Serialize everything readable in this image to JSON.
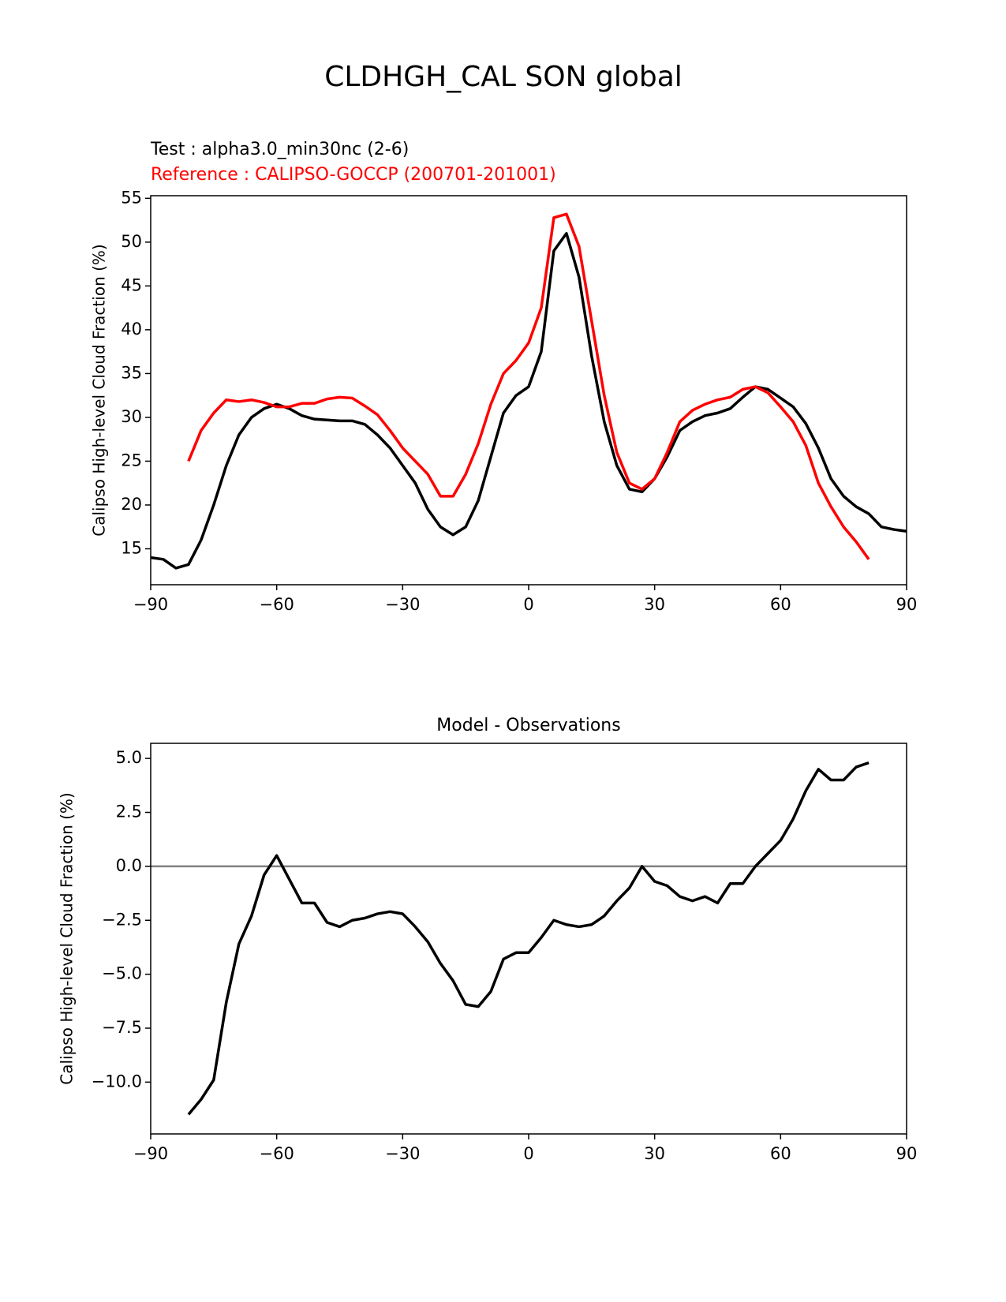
{
  "title": "CLDHGH_CAL SON global",
  "chart_data": [
    {
      "type": "line",
      "subtitles": [
        {
          "text": "Test : alpha3.0_min30nc (2-6)",
          "color": "#000000"
        },
        {
          "text": "Reference : CALIPSO-GOCCP (200701-201001)",
          "color": "#ff0000"
        }
      ],
      "ylabel": "Calipso High-level Cloud Fraction (%)",
      "xlim": [
        -90,
        90
      ],
      "xticks": [
        {
          "value": -90,
          "label": "−90"
        },
        {
          "value": -60,
          "label": "−60"
        },
        {
          "value": -30,
          "label": "−30"
        },
        0,
        30,
        60,
        90
      ],
      "ylim": [
        10.9,
        55.3
      ],
      "yticks": [
        15,
        20,
        25,
        30,
        35,
        40,
        45,
        50,
        55
      ],
      "series": [
        {
          "color": "#000000",
          "x": [
            -90,
            -87,
            -84,
            -81,
            -78,
            -75,
            -72,
            -69,
            -66,
            -63,
            -60,
            -57,
            -54,
            -51,
            -48,
            -45,
            -42,
            -39,
            -36,
            -33,
            -30,
            -27,
            -24,
            -21,
            -18,
            -15,
            -12,
            -9,
            -6,
            -3,
            0,
            3,
            6,
            9,
            12,
            15,
            18,
            21,
            24,
            27,
            30,
            33,
            36,
            39,
            42,
            45,
            48,
            51,
            54,
            57,
            60,
            63,
            66,
            69,
            72,
            75,
            78,
            81,
            84,
            87,
            90
          ],
          "values": [
            14.0,
            13.8,
            12.8,
            13.2,
            16,
            20,
            24.5,
            28,
            30,
            31,
            31.5,
            31,
            30.2,
            29.8,
            29.7,
            29.6,
            29.6,
            29.2,
            28,
            26.5,
            24.5,
            22.5,
            19.5,
            17.5,
            16.6,
            17.5,
            20.5,
            25.5,
            30.5,
            32.5,
            33.5,
            37.5,
            49,
            51,
            46,
            37,
            29.5,
            24.5,
            21.8,
            21.5,
            23,
            25.5,
            28.5,
            29.5,
            30.2,
            30.5,
            31,
            32.3,
            33.5,
            33.2,
            32.2,
            31.2,
            29.3,
            26.5,
            23,
            21,
            19.8,
            19,
            17.5,
            17.2,
            17
          ]
        },
        {
          "color": "#ff0000",
          "x": [
            -81,
            -78,
            -75,
            -72,
            -69,
            -66,
            -63,
            -60,
            -57,
            -54,
            -51,
            -48,
            -45,
            -42,
            -39,
            -36,
            -33,
            -30,
            -27,
            -24,
            -21,
            -18,
            -15,
            -12,
            -9,
            -6,
            -3,
            0,
            3,
            6,
            9,
            12,
            15,
            18,
            21,
            24,
            27,
            30,
            33,
            36,
            39,
            42,
            45,
            48,
            51,
            54,
            57,
            60,
            63,
            66,
            69,
            72,
            75,
            78,
            81
          ],
          "values": [
            25,
            28.5,
            30.5,
            32,
            31.8,
            32,
            31.7,
            31.2,
            31.2,
            31.6,
            31.6,
            32.1,
            32.3,
            32.2,
            31.3,
            30.3,
            28.5,
            26.5,
            25,
            23.5,
            21,
            21,
            23.5,
            27,
            31.5,
            35,
            36.5,
            38.5,
            42.5,
            52.8,
            53.2,
            49.5,
            41,
            32.5,
            26,
            22.5,
            21.8,
            23,
            26,
            29.5,
            30.8,
            31.5,
            32,
            32.3,
            33.2,
            33.5,
            32.8,
            31.2,
            29.5,
            26.8,
            22.5,
            19.8,
            17.5,
            15.8,
            13.8
          ]
        }
      ]
    },
    {
      "type": "line",
      "title": "Model - Observations",
      "ylabel": "Calipso High-level Cloud Fraction (%)",
      "xlim": [
        -90,
        90
      ],
      "xticks": [
        {
          "value": -90,
          "label": "−90"
        },
        {
          "value": -60,
          "label": "−60"
        },
        {
          "value": -30,
          "label": "−30"
        },
        0,
        30,
        60,
        90
      ],
      "ylim": [
        -12.4,
        5.7
      ],
      "yticks": [
        {
          "value": -10,
          "label": "−10.0"
        },
        {
          "value": -7.5,
          "label": "−7.5"
        },
        {
          "value": -5,
          "label": "−5.0"
        },
        {
          "value": -2.5,
          "label": "−2.5"
        },
        {
          "value": 0,
          "label": "0.0"
        },
        2.5,
        {
          "value": 5,
          "label": "5.0"
        }
      ],
      "reference_line": {
        "value": 0,
        "color": "#808080"
      },
      "series": [
        {
          "color": "#000000",
          "x": [
            -81,
            -78,
            -75,
            -72,
            -69,
            -66,
            -63,
            -60,
            -57,
            -54,
            -51,
            -48,
            -45,
            -42,
            -39,
            -36,
            -33,
            -30,
            -27,
            -24,
            -21,
            -18,
            -15,
            -12,
            -9,
            -6,
            -3,
            0,
            3,
            6,
            9,
            12,
            15,
            18,
            21,
            24,
            27,
            30,
            33,
            36,
            39,
            42,
            45,
            48,
            51,
            54,
            57,
            60,
            63,
            66,
            69,
            72,
            75,
            78,
            81
          ],
          "values": [
            -11.5,
            -10.8,
            -9.9,
            -6.3,
            -3.6,
            -2.3,
            -0.4,
            0.5,
            -0.6,
            -1.7,
            -1.7,
            -2.6,
            -2.8,
            -2.5,
            -2.4,
            -2.2,
            -2.1,
            -2.2,
            -2.8,
            -3.5,
            -4.5,
            -5.3,
            -6.4,
            -6.5,
            -5.8,
            -4.3,
            -4.0,
            -4.0,
            -3.3,
            -2.5,
            -2.7,
            -2.8,
            -2.7,
            -2.3,
            -1.6,
            -1.0,
            0.0,
            -0.7,
            -0.9,
            -1.4,
            -1.6,
            -1.4,
            -1.7,
            -0.8,
            -0.8,
            0.0,
            0.6,
            1.2,
            2.2,
            3.5,
            4.5,
            4.0,
            4.0,
            4.6,
            4.8
          ]
        }
      ]
    }
  ]
}
